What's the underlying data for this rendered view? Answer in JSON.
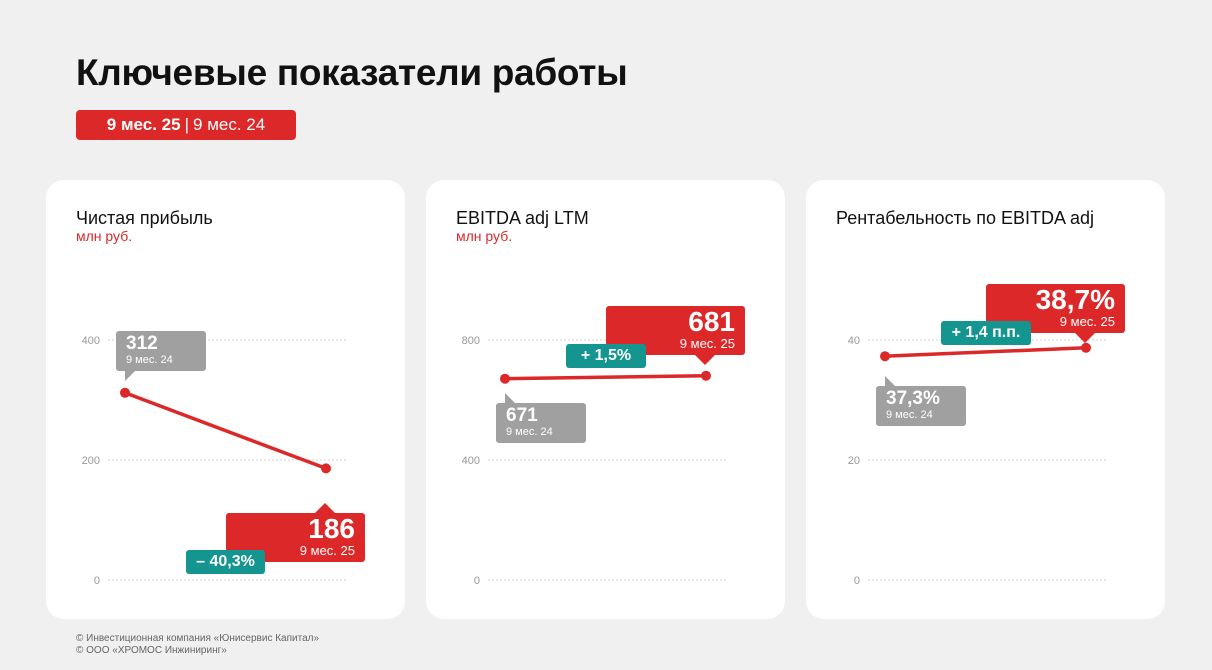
{
  "header": {
    "title": "Ключевые показатели работы",
    "badge_current": "9 мес. 25",
    "badge_sep": "|",
    "badge_prev": "9 мес. 24"
  },
  "colors": {
    "accent": "#dc2828",
    "previous": "#a0a0a0",
    "change": "#14958f"
  },
  "chart_data": [
    {
      "type": "line",
      "title": "Чистая прибыль",
      "unit": "млн руб.",
      "categories": [
        "9 мес. 24",
        "9 мес. 25"
      ],
      "values": [
        312,
        186
      ],
      "yticks": [
        "0",
        "200",
        "400"
      ],
      "ylim": [
        0,
        400
      ],
      "grid": true,
      "labels": {
        "prev_value": "312",
        "prev_period": "9 мес. 24",
        "cur_value": "186",
        "cur_period": "9 мес. 25",
        "change": "– 40,3%"
      }
    },
    {
      "type": "line",
      "title": "EBITDA adj LTM",
      "unit": "млн руб.",
      "categories": [
        "9 мес. 24",
        "9 мес. 25"
      ],
      "values": [
        671,
        681
      ],
      "yticks": [
        "0",
        "400",
        "800"
      ],
      "ylim": [
        0,
        800
      ],
      "grid": true,
      "labels": {
        "prev_value": "671",
        "prev_period": "9 мес. 24",
        "cur_value": "681",
        "cur_period": "9 мес. 25",
        "change": "+ 1,5%"
      }
    },
    {
      "type": "line",
      "title": "Рентабельность по EBITDA adj",
      "unit": "",
      "categories": [
        "9 мес. 24",
        "9 мес. 25"
      ],
      "values": [
        37.3,
        38.7
      ],
      "yticks": [
        "0",
        "20",
        "40"
      ],
      "ylim": [
        0,
        40
      ],
      "grid": true,
      "labels": {
        "prev_value": "37,3%",
        "prev_period": "9 мес. 24",
        "cur_value": "38,7%",
        "cur_period": "9 мес. 25",
        "change": "+ 1,4 п.п."
      }
    }
  ],
  "footer": {
    "line1": "© Инвестиционная компания «Юнисервис Капитал»",
    "line2": "© ООО «ХРОМОС Инжиниринг»"
  }
}
